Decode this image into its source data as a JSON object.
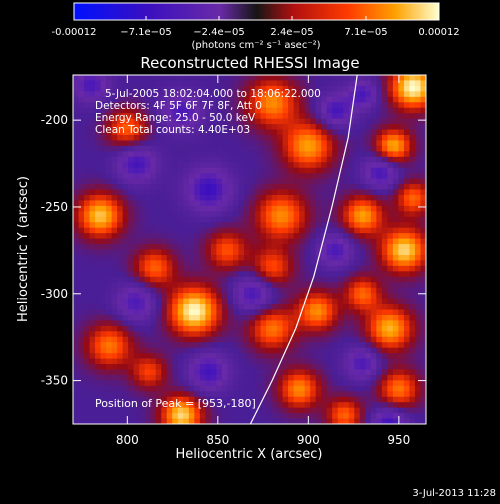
{
  "chart_data": {
    "type": "heatmap",
    "title": "Reconstructed RHESSI Image",
    "xlabel": "Heliocentric X (arcsec)",
    "ylabel": "Heliocentric Y (arcsec)",
    "xlim": [
      770,
      965
    ],
    "ylim": [
      -375,
      -174
    ],
    "xticks": [
      800,
      850,
      900,
      950
    ],
    "yticks": [
      -200,
      -250,
      -300,
      -350
    ],
    "colorbar": {
      "range": [
        -0.00012,
        0.00012
      ],
      "tick_labels": [
        "-0.00012",
        "−7.1e−05",
        "−2.4e−05",
        "2.4e−05",
        "7.1e−05",
        "0.00012"
      ],
      "unit_label": "(photons cm⁻² s⁻¹ asec⁻²)"
    },
    "annotations": [
      "5-Jul-2005 18:02:04.000 to 18:06:22.000",
      "Detectors: 4F 5F 6F 7F 8F, Att 0",
      "Energy Range: 25.0 - 50.0 keV",
      "Clean     Total counts: 4.40E+03"
    ],
    "peak_label": "Position of Peak = [953,-180]",
    "peak_position": [
      953,
      -180
    ],
    "limb_curve": [
      [
        868,
        -375
      ],
      [
        880,
        -350
      ],
      [
        893,
        -320
      ],
      [
        903,
        -290
      ],
      [
        913,
        -250
      ],
      [
        922,
        -210
      ],
      [
        927,
        -174
      ]
    ],
    "blobs": [
      {
        "x": 958,
        "y": -181,
        "v": 1.0,
        "s": 9
      },
      {
        "x": 953,
        "y": -275,
        "v": 0.9,
        "s": 9
      },
      {
        "x": 947,
        "y": -215,
        "v": 0.8,
        "s": 7
      },
      {
        "x": 900,
        "y": -215,
        "v": 0.75,
        "s": 10
      },
      {
        "x": 880,
        "y": -190,
        "v": 0.7,
        "s": 10
      },
      {
        "x": 800,
        "y": -205,
        "v": 0.6,
        "s": 8
      },
      {
        "x": 785,
        "y": -255,
        "v": 0.85,
        "s": 9
      },
      {
        "x": 885,
        "y": -255,
        "v": 0.7,
        "s": 10
      },
      {
        "x": 930,
        "y": -255,
        "v": 0.75,
        "s": 8
      },
      {
        "x": 958,
        "y": -245,
        "v": 0.6,
        "s": 7
      },
      {
        "x": 837,
        "y": -310,
        "v": 1.0,
        "s": 10
      },
      {
        "x": 880,
        "y": -320,
        "v": 0.65,
        "s": 9
      },
      {
        "x": 905,
        "y": -310,
        "v": 0.7,
        "s": 8
      },
      {
        "x": 945,
        "y": -320,
        "v": 0.8,
        "s": 9
      },
      {
        "x": 930,
        "y": -300,
        "v": 0.6,
        "s": 7
      },
      {
        "x": 790,
        "y": -330,
        "v": 0.65,
        "s": 9
      },
      {
        "x": 830,
        "y": -370,
        "v": 0.9,
        "s": 8
      },
      {
        "x": 812,
        "y": -345,
        "v": 0.5,
        "s": 7
      },
      {
        "x": 895,
        "y": -355,
        "v": 0.7,
        "s": 8
      },
      {
        "x": 950,
        "y": -355,
        "v": 0.65,
        "s": 8
      },
      {
        "x": 920,
        "y": -370,
        "v": 0.6,
        "s": 7
      },
      {
        "x": 855,
        "y": -275,
        "v": 0.55,
        "s": 8
      },
      {
        "x": 815,
        "y": -285,
        "v": 0.6,
        "s": 8
      },
      {
        "x": 880,
        "y": -285,
        "v": 0.55,
        "s": 8
      },
      {
        "x": 845,
        "y": -240,
        "v": -0.6,
        "s": 9
      },
      {
        "x": 805,
        "y": -225,
        "v": -0.55,
        "s": 8
      },
      {
        "x": 830,
        "y": -195,
        "v": -0.5,
        "s": 8
      },
      {
        "x": 915,
        "y": -195,
        "v": -0.55,
        "s": 7
      },
      {
        "x": 930,
        "y": -185,
        "v": -0.5,
        "s": 6
      },
      {
        "x": 870,
        "y": -300,
        "v": -0.55,
        "s": 8
      },
      {
        "x": 805,
        "y": -305,
        "v": -0.5,
        "s": 8
      },
      {
        "x": 845,
        "y": -345,
        "v": -0.55,
        "s": 8
      },
      {
        "x": 945,
        "y": -375,
        "v": -0.6,
        "s": 7
      },
      {
        "x": 930,
        "y": -340,
        "v": -0.5,
        "s": 7
      },
      {
        "x": 940,
        "y": -230,
        "v": -0.55,
        "s": 7
      },
      {
        "x": 915,
        "y": -275,
        "v": -0.5,
        "s": 7
      },
      {
        "x": 780,
        "y": -180,
        "v": -0.5,
        "s": 7
      }
    ]
  },
  "timestamp": "3-Jul-2013 11:28"
}
